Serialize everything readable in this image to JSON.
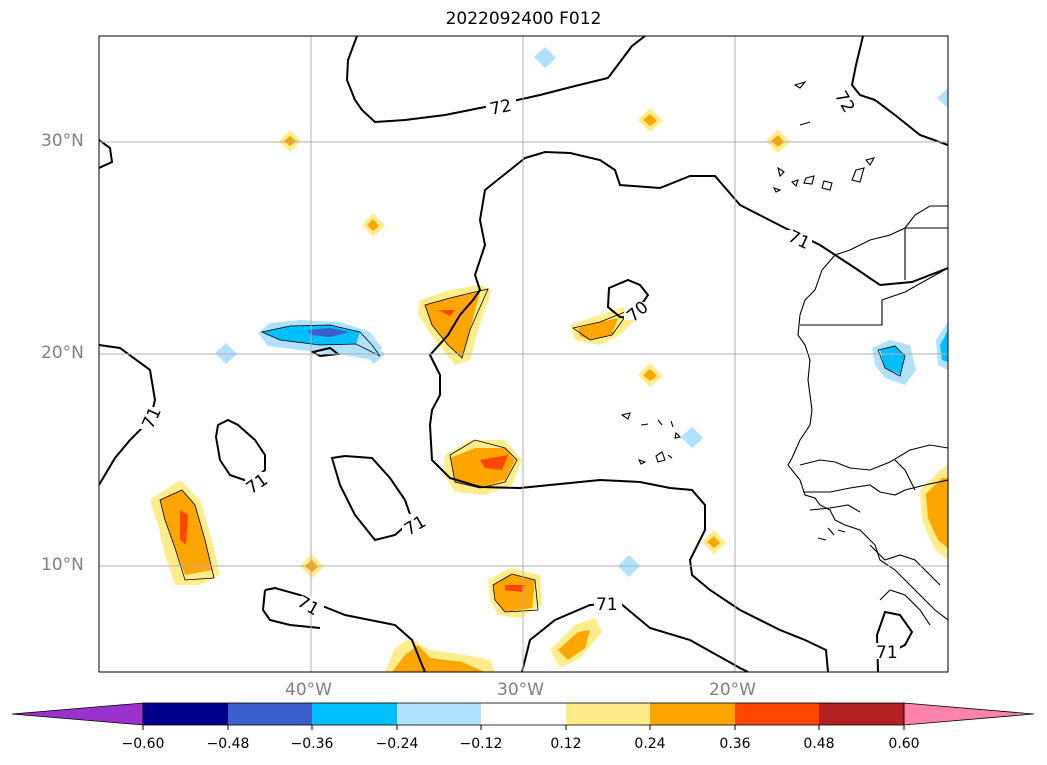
{
  "title": "2022092400 F012",
  "axes": {
    "lat_labels": [
      "30°N",
      "20°N",
      "10°N"
    ],
    "lon_labels": [
      "40°W",
      "30°W",
      "20°W"
    ]
  },
  "contours": {
    "labels": [
      "72",
      "72",
      "71",
      "71",
      "71",
      "71",
      "71",
      "71",
      "71",
      "70",
      "71"
    ]
  },
  "colorbar": {
    "ticks": [
      "−0.60",
      "−0.48",
      "−0.36",
      "−0.24",
      "−0.12",
      "0.12",
      "0.24",
      "0.36",
      "0.48",
      "0.60"
    ],
    "under_color": "#9932cc",
    "colors": [
      "#9932cc",
      "#00008b",
      "#3a5fcd",
      "#00bfff",
      "#b0e2ff",
      "#ffffff",
      "#ffec8b",
      "#ffa500",
      "#ff4500",
      "#b22222",
      "#ff82ab"
    ],
    "over_color": "#ff82ab"
  }
}
